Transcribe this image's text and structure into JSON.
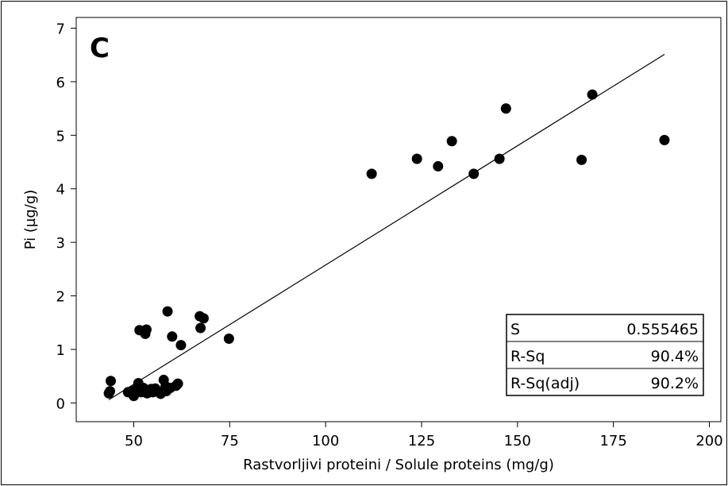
{
  "chart_data": {
    "type": "scatter",
    "panel_label": "C",
    "xlabel": "Rastvorljivi proteini / Solule proteins (mg/g)",
    "ylabel": "Pi (µg/g)",
    "xlim": [
      35,
      203
    ],
    "ylim": [
      -0.35,
      7.2
    ],
    "x_ticks": [
      50,
      75,
      100,
      125,
      150,
      175,
      200
    ],
    "y_ticks": [
      0,
      1,
      2,
      3,
      4,
      5,
      6,
      7
    ],
    "grid": false,
    "points": [
      {
        "x": 43.5,
        "y": 0.18
      },
      {
        "x": 43.8,
        "y": 0.22
      },
      {
        "x": 44.0,
        "y": 0.41
      },
      {
        "x": 48.5,
        "y": 0.2
      },
      {
        "x": 49.5,
        "y": 0.22
      },
      {
        "x": 50.0,
        "y": 0.13
      },
      {
        "x": 50.3,
        "y": 0.2
      },
      {
        "x": 51.0,
        "y": 0.29
      },
      {
        "x": 51.2,
        "y": 0.37
      },
      {
        "x": 51.5,
        "y": 1.36
      },
      {
        "x": 52.0,
        "y": 0.2
      },
      {
        "x": 52.5,
        "y": 0.28
      },
      {
        "x": 53.0,
        "y": 1.29
      },
      {
        "x": 53.3,
        "y": 1.37
      },
      {
        "x": 53.5,
        "y": 0.18
      },
      {
        "x": 54.5,
        "y": 0.26
      },
      {
        "x": 55.0,
        "y": 0.2
      },
      {
        "x": 55.6,
        "y": 0.27
      },
      {
        "x": 56.0,
        "y": 0.23
      },
      {
        "x": 57.0,
        "y": 0.17
      },
      {
        "x": 57.8,
        "y": 0.43
      },
      {
        "x": 58.3,
        "y": 0.31
      },
      {
        "x": 58.5,
        "y": 0.22
      },
      {
        "x": 58.8,
        "y": 1.71
      },
      {
        "x": 59.5,
        "y": 0.28
      },
      {
        "x": 60.0,
        "y": 1.24
      },
      {
        "x": 61.0,
        "y": 0.32
      },
      {
        "x": 61.5,
        "y": 0.36
      },
      {
        "x": 62.3,
        "y": 1.08
      },
      {
        "x": 67.2,
        "y": 1.62
      },
      {
        "x": 67.4,
        "y": 1.4
      },
      {
        "x": 68.2,
        "y": 1.58
      },
      {
        "x": 74.8,
        "y": 1.2
      },
      {
        "x": 112.0,
        "y": 4.28
      },
      {
        "x": 123.8,
        "y": 4.56
      },
      {
        "x": 129.3,
        "y": 4.42
      },
      {
        "x": 132.9,
        "y": 4.89
      },
      {
        "x": 138.6,
        "y": 4.28
      },
      {
        "x": 145.3,
        "y": 4.56
      },
      {
        "x": 147.0,
        "y": 5.5
      },
      {
        "x": 166.7,
        "y": 4.54
      },
      {
        "x": 169.5,
        "y": 5.76
      },
      {
        "x": 188.3,
        "y": 4.91
      }
    ],
    "fit_line": {
      "x": [
        43.5,
        188.3
      ],
      "y": [
        0.06,
        6.51
      ]
    },
    "stats": [
      {
        "label": "S",
        "value": "0.555465"
      },
      {
        "label": "R-Sq",
        "value": "90.4%"
      },
      {
        "label": "R-Sq(adj)",
        "value": "90.2%"
      }
    ]
  }
}
